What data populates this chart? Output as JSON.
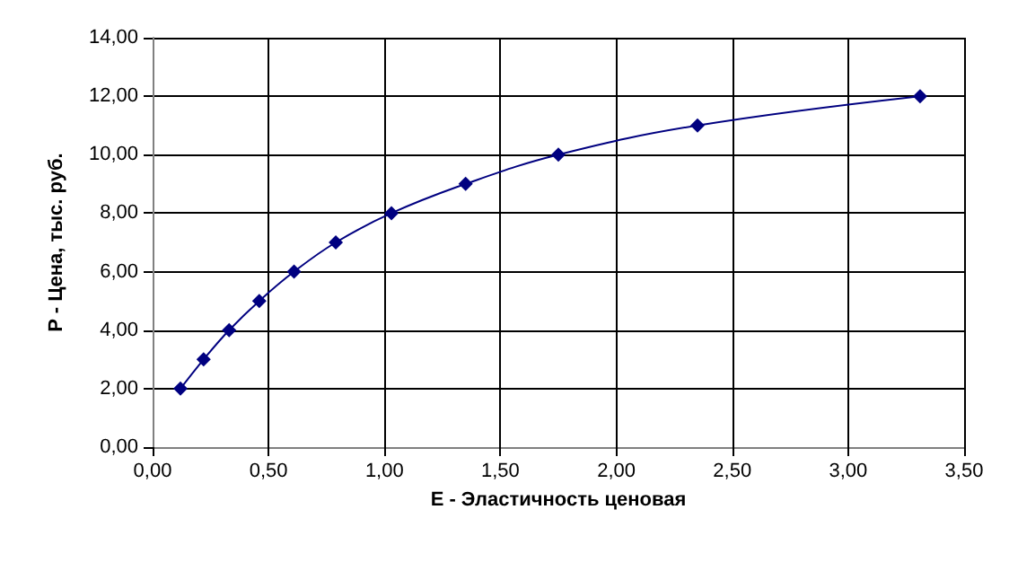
{
  "chart_data": {
    "type": "line",
    "xlabel": "E - Эластичность ценовая",
    "ylabel": "P - Цена, тыс. руб.",
    "x": [
      0.12,
      0.22,
      0.33,
      0.46,
      0.61,
      0.79,
      1.03,
      1.35,
      1.75,
      2.35,
      3.31
    ],
    "series": [
      {
        "color": "#000080",
        "values": [
          2,
          3,
          4,
          5,
          6,
          7,
          8,
          9,
          10,
          11,
          12
        ]
      }
    ],
    "xlim": [
      0,
      3.5
    ],
    "xticks": [
      {
        "value": 0,
        "label": "0,00"
      },
      {
        "value": 0.5,
        "label": "0,50"
      },
      {
        "value": 1,
        "label": "1,00"
      },
      {
        "value": 1.5,
        "label": "1,50"
      },
      {
        "value": 2,
        "label": "2,00"
      },
      {
        "value": 2.5,
        "label": "2,50"
      },
      {
        "value": 3,
        "label": "3,00"
      },
      {
        "value": 3.5,
        "label": "3,50"
      }
    ],
    "ylim": [
      0,
      14
    ],
    "yticks": [
      {
        "value": 0,
        "label": "0,00"
      },
      {
        "value": 2,
        "label": "2,00"
      },
      {
        "value": 4,
        "label": "4,00"
      },
      {
        "value": 6,
        "label": "6,00"
      },
      {
        "value": 8,
        "label": "8,00"
      },
      {
        "value": 10,
        "label": "10,00"
      },
      {
        "value": 12,
        "label": "12,00"
      },
      {
        "value": 14,
        "label": "14,00"
      }
    ],
    "grid": true,
    "marker": "diamond",
    "line_style": "solid"
  }
}
